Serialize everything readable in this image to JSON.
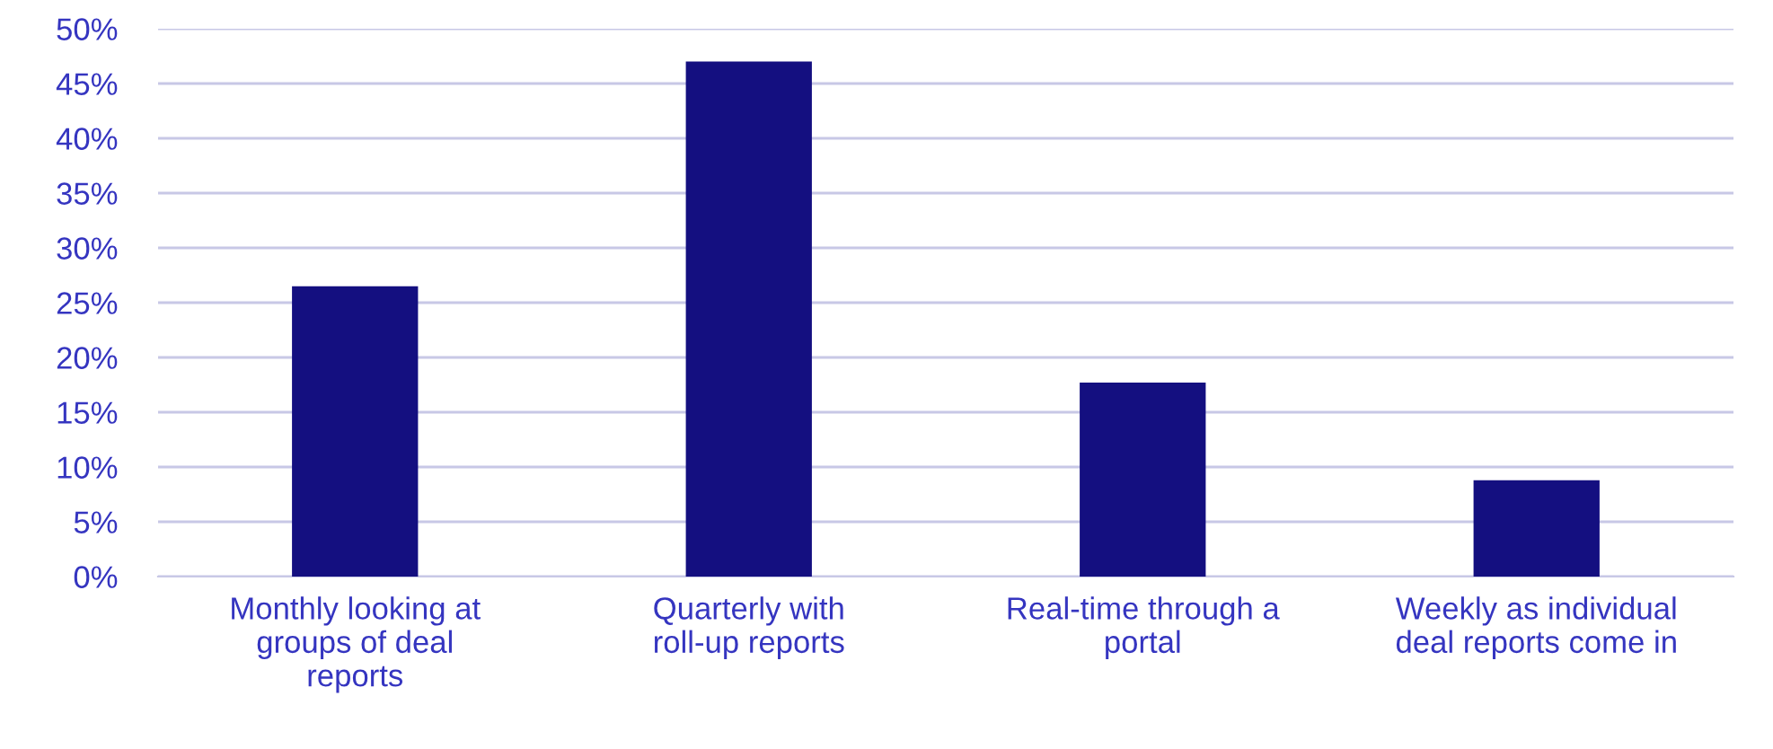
{
  "chart_data": {
    "type": "bar",
    "categories": [
      "Monthly looking at groups of deal reports",
      "Quarterly with roll-up reports",
      "Real-time through a portal",
      "Weekly as individual deal reports come in"
    ],
    "values": [
      26.5,
      47,
      17.7,
      8.8
    ],
    "color": "#140f80",
    "ylim": [
      0,
      50
    ],
    "yticks": [
      {
        "value": 0,
        "label": "0%"
      },
      {
        "value": 5,
        "label": "5%"
      },
      {
        "value": 10,
        "label": "10%"
      },
      {
        "value": 15,
        "label": "15%"
      },
      {
        "value": 20,
        "label": "20%"
      },
      {
        "value": 25,
        "label": "25%"
      },
      {
        "value": 30,
        "label": "30%"
      },
      {
        "value": 35,
        "label": "35%"
      },
      {
        "value": 40,
        "label": "40%"
      },
      {
        "value": 45,
        "label": "45%"
      },
      {
        "value": 50,
        "label": "50%"
      }
    ],
    "grid": "y"
  }
}
